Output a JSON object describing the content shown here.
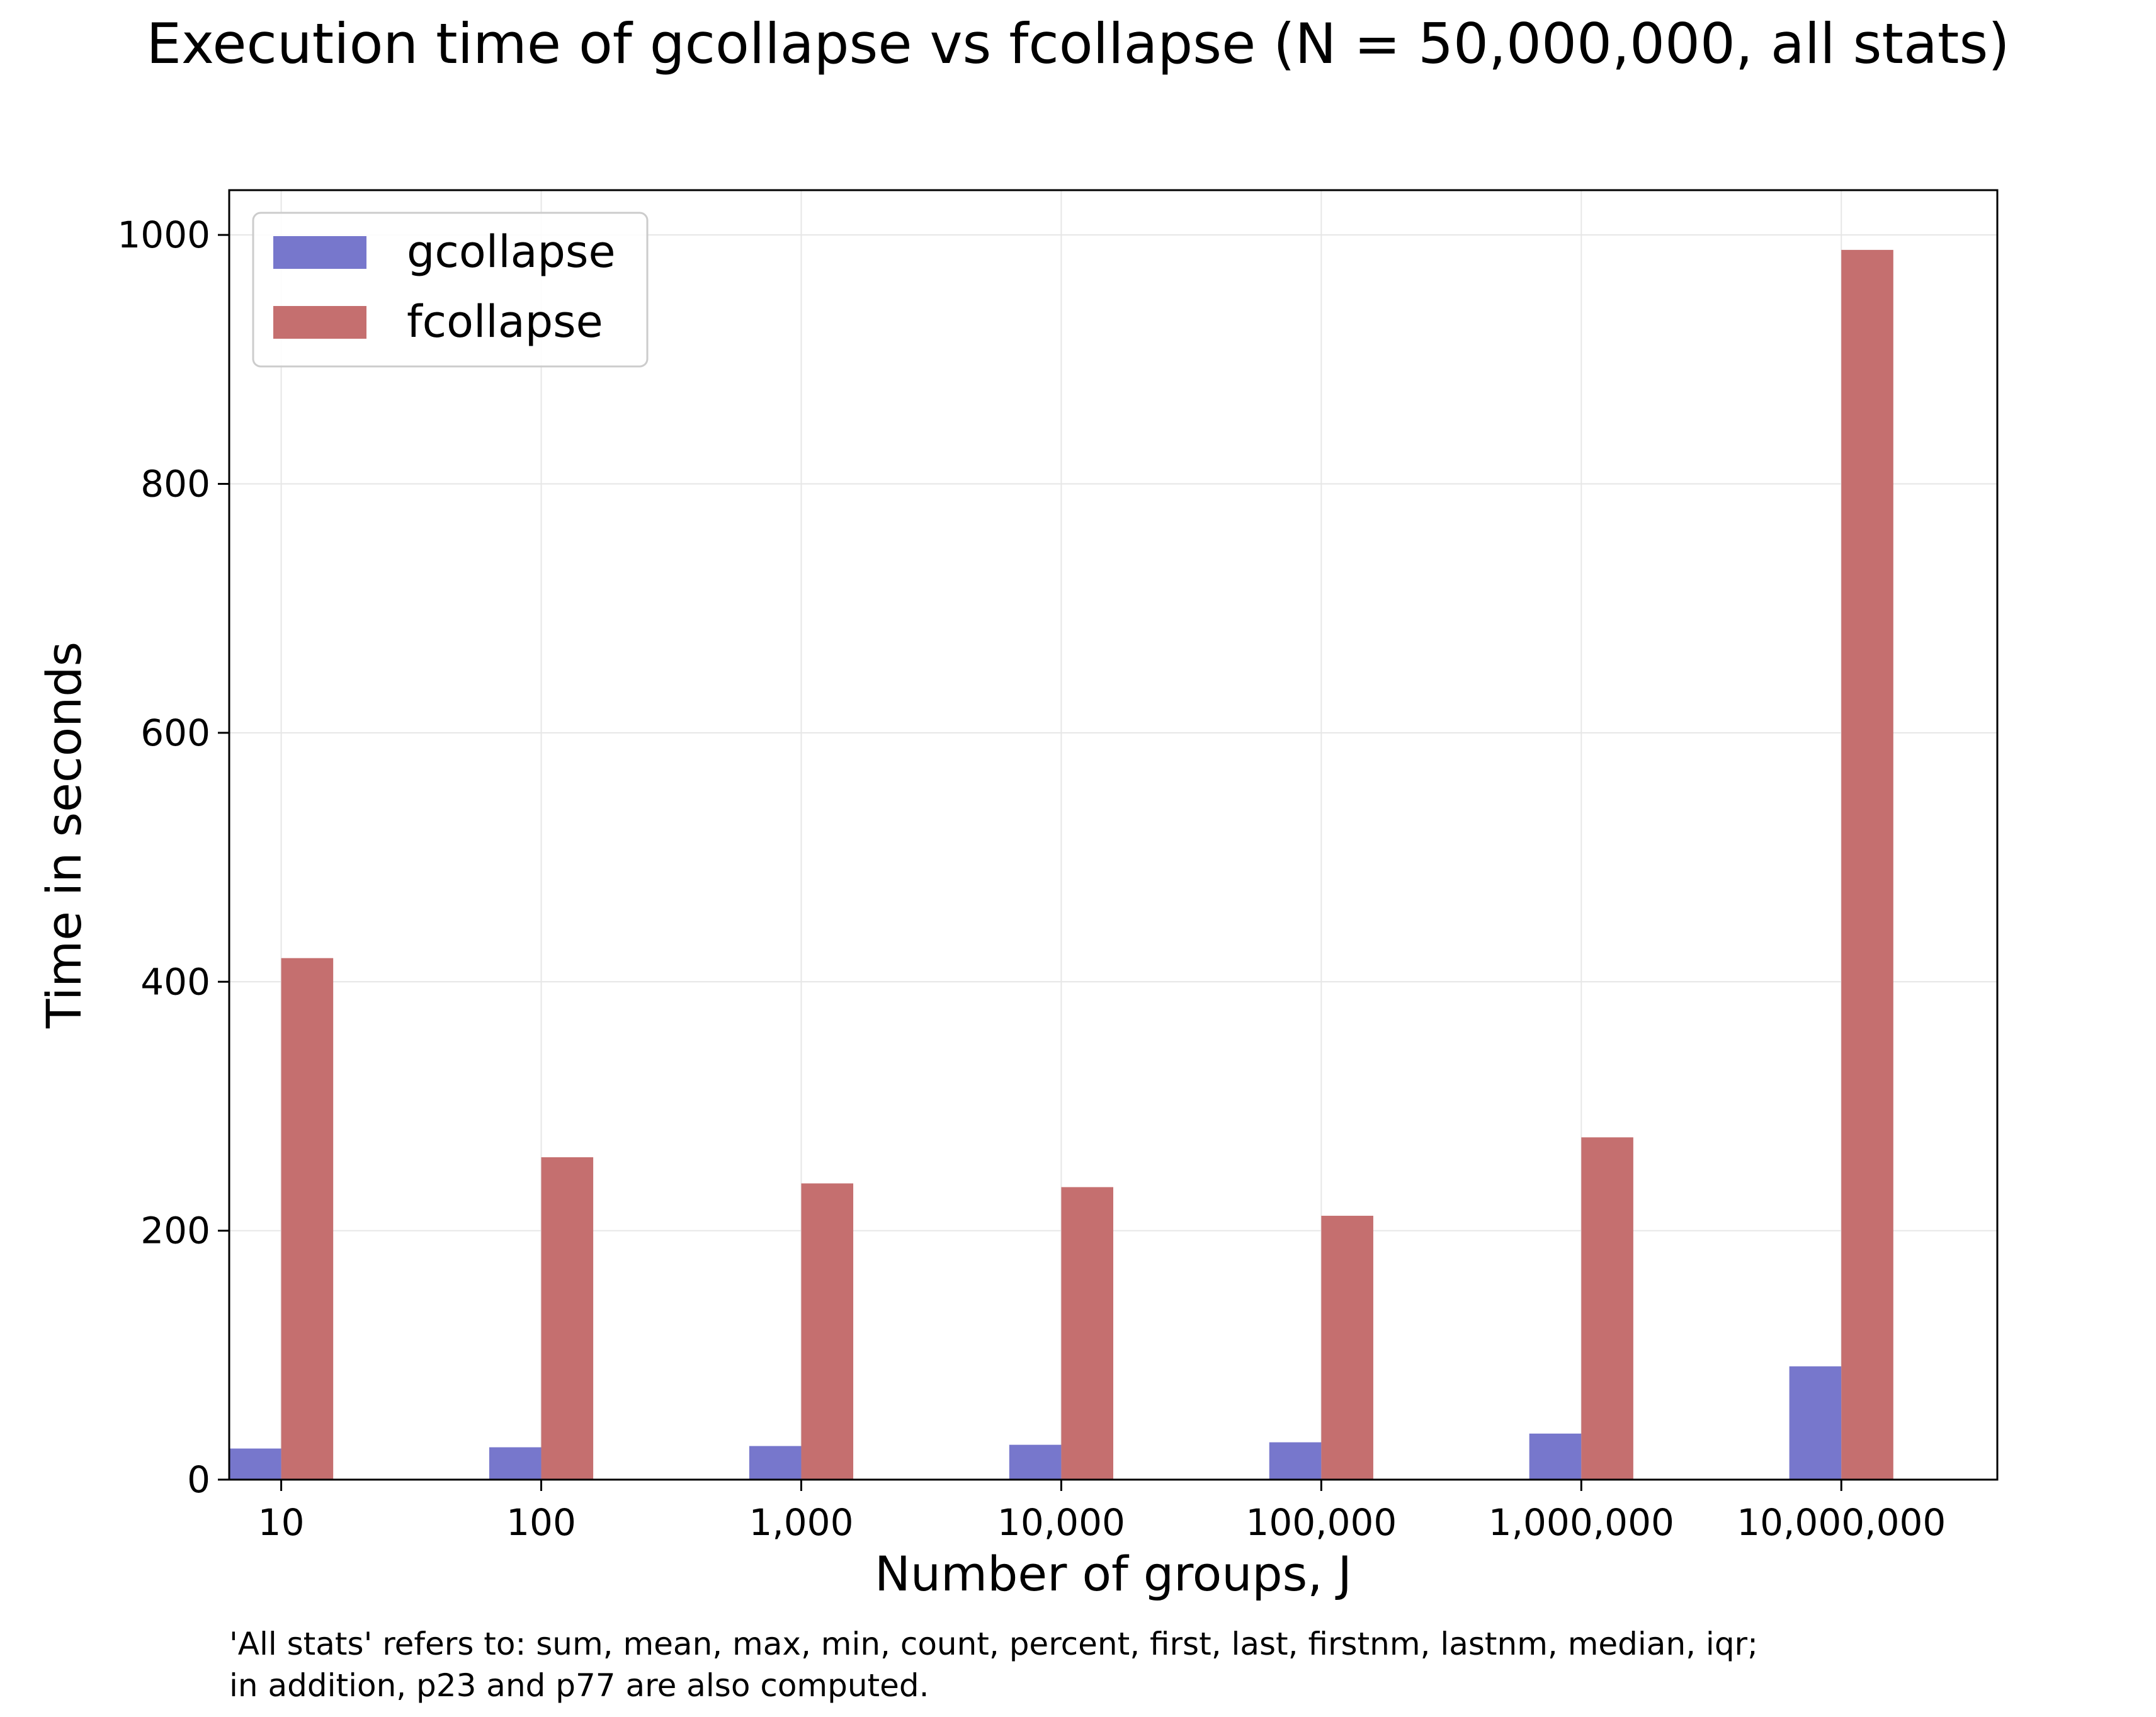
{
  "chart_data": {
    "type": "bar",
    "title": "Execution time of gcollapse vs fcollapse (N = 50,000,000, all stats)",
    "xlabel": "Number of groups, J",
    "ylabel": "Time in seconds",
    "categories": [
      "10",
      "100",
      "1,000",
      "10,000",
      "100,000",
      "1,000,000",
      "10,000,000"
    ],
    "series": [
      {
        "name": "gcollapse",
        "color": "#7777cc",
        "values": [
          25,
          26,
          27,
          28,
          30,
          37,
          91
        ]
      },
      {
        "name": "fcollapse",
        "color": "#c56f6f",
        "values": [
          419,
          259,
          238,
          235,
          212,
          275,
          988
        ]
      }
    ],
    "ylim": [
      0,
      1036
    ],
    "yticks": [
      0,
      200,
      400,
      600,
      800,
      1000
    ],
    "grid": true,
    "legend": "top-left"
  },
  "footnote": "'All stats' refers to: sum, mean, max, min, count, percent, first, last, firstnm, lastnm, median, iqr;\nin addition, p23 and p77 are also computed."
}
